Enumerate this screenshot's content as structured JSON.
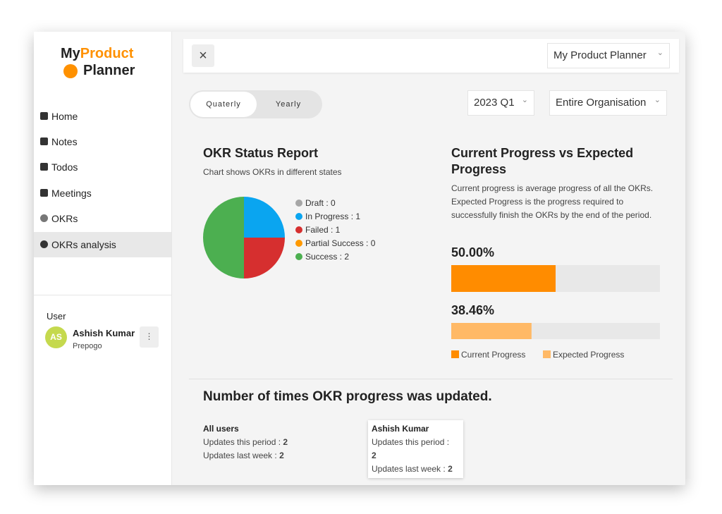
{
  "logo": [
    "My",
    "Product",
    "Planner"
  ],
  "nav": [
    "Home",
    "Notes",
    "Todos",
    "Meetings",
    "OKRs",
    "OKRs analysis"
  ],
  "user": {
    "heading": "User",
    "initials": "AS",
    "name": "Ashish Kumar",
    "org": "Prepogo"
  },
  "header": {
    "planner": "My Product Planner"
  },
  "filters": {
    "tabs": [
      "Quaterly",
      "Yearly"
    ],
    "period": "2023 Q1",
    "scope": "Entire Organisation"
  },
  "chart_data": [
    {
      "type": "pie",
      "title": "OKR Status Report",
      "subtitle": "Chart shows OKRs in different states",
      "values": [
        0,
        1,
        1,
        0,
        2
      ],
      "value_labels": [
        "Draft : 0",
        "In Progress : 1",
        "Failed : 1",
        "Partial Success : 0",
        "Success : 2"
      ],
      "colors": [
        "#a6a6a6",
        "#0aa5f0",
        "#d62f2f",
        "#ff9900",
        "#4caf50"
      ]
    },
    {
      "type": "bar",
      "title": "Current Progress vs Expected Progress",
      "subtitle": "Current progress is average progress of all the OKRs. Expected Progress is the progress required to successfully finish the OKRs by the end of the period.",
      "xlim": [
        0,
        100
      ],
      "series": [
        {
          "name": "Current Progress",
          "color": "#ff8c00",
          "values": [
            50
          ],
          "value_labels": [
            "50.00%"
          ]
        },
        {
          "name": "Expected Progress",
          "color": "#ffb966",
          "values": [
            38.46
          ],
          "value_labels": [
            "38.46%"
          ]
        }
      ]
    }
  ],
  "updates": {
    "title": "Number of times OKR progress was updated.",
    "groups": [
      {
        "name": "All users",
        "rows": [
          {
            "label": "Updates this period :",
            "value": 2
          },
          {
            "label": "Updates last week :",
            "value": 2
          }
        ]
      },
      {
        "name": "Ashish Kumar",
        "rows": [
          {
            "label": "Updates this period :",
            "value": 2
          },
          {
            "label": "Updates last week :",
            "value": 2
          }
        ]
      }
    ]
  }
}
